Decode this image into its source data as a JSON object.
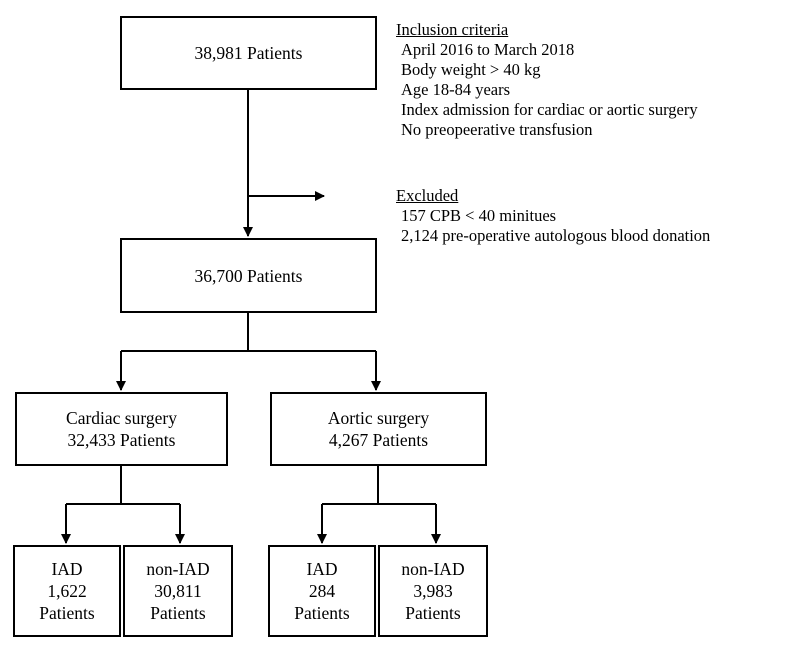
{
  "boxes": {
    "total": {
      "lines": [
        "38,981 Patients"
      ]
    },
    "after_exclusion": {
      "lines": [
        "36,700 Patients"
      ]
    },
    "cardiac": {
      "lines": [
        "Cardiac surgery",
        "32,433 Patients"
      ]
    },
    "aortic": {
      "lines": [
        "Aortic surgery",
        "4,267 Patients"
      ]
    },
    "cardiac_iad": {
      "lines": [
        "IAD",
        "1,622",
        "Patients"
      ]
    },
    "cardiac_non_iad": {
      "lines": [
        "non-IAD",
        "30,811",
        "Patients"
      ]
    },
    "aortic_iad": {
      "lines": [
        "IAD",
        "284",
        "Patients"
      ]
    },
    "aortic_non_iad": {
      "lines": [
        "non-IAD",
        "3,983",
        "Patients"
      ]
    }
  },
  "inclusion": {
    "heading": "Inclusion criteria",
    "items": [
      "April 2016 to March 2018",
      "Body weight > 40 kg",
      "Age 18-84 years",
      "Index admission for cardiac or aortic surgery",
      "No preopeerative transfusion"
    ]
  },
  "exclusion": {
    "heading": "Excluded",
    "items": [
      "157 CPB < 40 minitues",
      "2,124 pre-operative autologous blood donation"
    ]
  }
}
